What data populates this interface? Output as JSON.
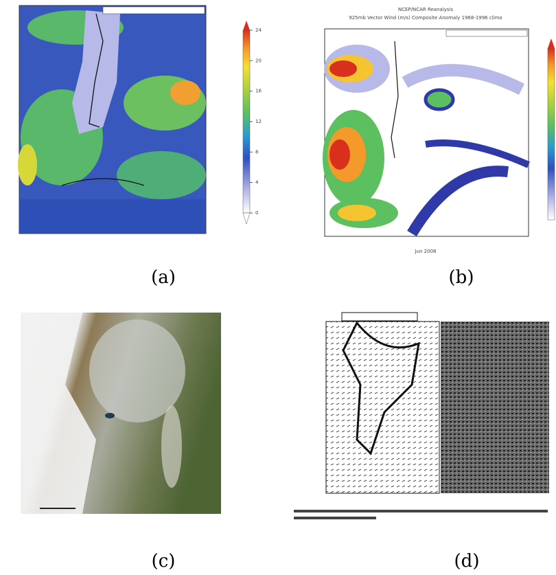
{
  "panels": [
    {
      "label": "(a)",
      "colorbar": {
        "ticks": [
          0,
          4,
          8,
          12,
          16,
          20,
          24
        ]
      }
    },
    {
      "label": "(b)",
      "title": "NCEP/NCAR Reanalysis",
      "subtitle": "925mb Vector Wind (m/s) Composite Anomaly 1968-1996 climo",
      "x_label": "Jun 2008"
    },
    {
      "label": "(c)"
    },
    {
      "label": "(d)"
    }
  ]
}
